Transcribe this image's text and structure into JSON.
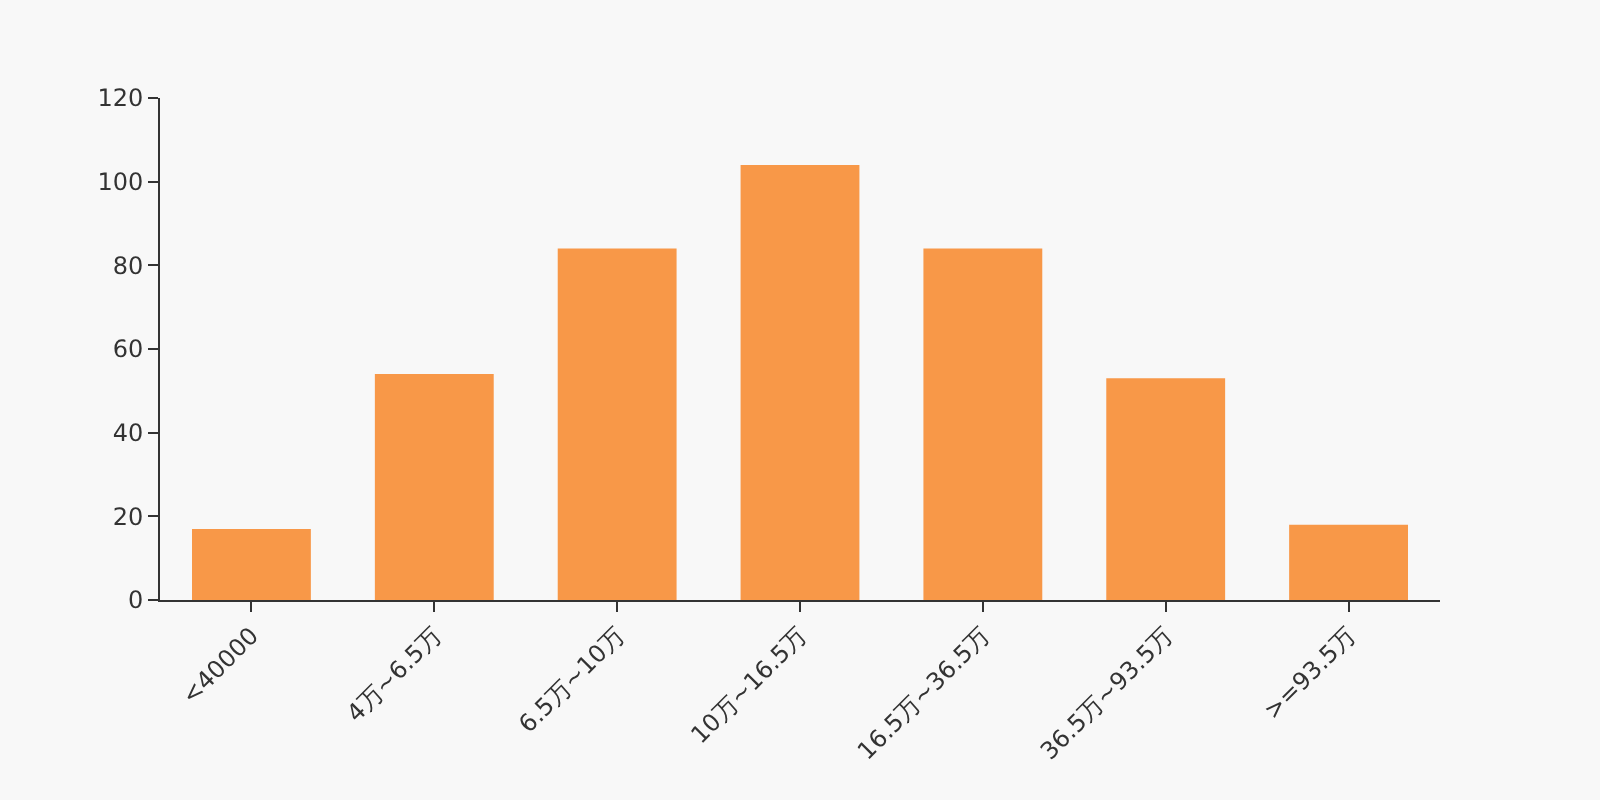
{
  "chart_data": {
    "type": "bar",
    "categories": [
      "<40000",
      "4万~6.5万",
      "6.5万~10万",
      "10万~16.5万",
      "16.5万~36.5万",
      "36.5万~93.5万",
      ">=93.5万"
    ],
    "values": [
      17,
      54,
      84,
      104,
      84,
      53,
      18
    ],
    "color": "#f89848",
    "ylim": [
      0,
      120
    ],
    "yticks": [
      0,
      20,
      40,
      60,
      80,
      100,
      120
    ],
    "grid": false
  }
}
